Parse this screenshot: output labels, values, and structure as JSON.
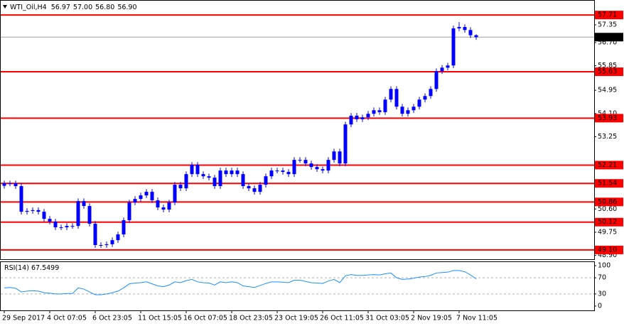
{
  "chart_data": {
    "type": "candlestick",
    "header": {
      "symbol": "WTI_Oil,H4",
      "ohlc": [
        56.97,
        {
          "value": 57,
          "label": "57.00"
        },
        {
          "value": 56.8,
          "label": "56.80"
        },
        {
          "value": 56.9,
          "label": "56.90"
        }
      ]
    },
    "color": "#0000ff",
    "categories": [
      "29 Sep 2017",
      null,
      null,
      null,
      null,
      null,
      null,
      null,
      "4 Oct 07:05",
      null,
      null,
      null,
      null,
      null,
      null,
      null,
      "6 Oct 23:05",
      null,
      null,
      null,
      null,
      null,
      null,
      null,
      "11 Oct 15:05",
      null,
      null,
      null,
      null,
      null,
      null,
      null,
      "16 Oct 07:05",
      null,
      null,
      null,
      null,
      null,
      null,
      null,
      "18 Oct 23:05",
      null,
      null,
      null,
      null,
      null,
      null,
      null,
      "23 Oct 19:05",
      null,
      null,
      null,
      null,
      null,
      null,
      null,
      "26 Oct 11:05",
      null,
      null,
      null,
      null,
      null,
      null,
      null,
      "31 Oct 03:05",
      null,
      null,
      null,
      null,
      null,
      null,
      null,
      "2 Nov 19:05",
      null,
      null,
      null,
      null,
      null,
      null,
      null,
      "7 Nov 11:05",
      null,
      null,
      null
    ],
    "open": [
      51.45,
      51.54,
      51.54,
      51.44,
      50.5,
      50.53,
      50.56,
      50.5,
      50.24,
      50.14,
      49.93,
      49.93,
      49.98,
      49.98,
      50.89,
      50.71,
      50.06,
      49.28,
      49.28,
      49.31,
      49.46,
      49.67,
      50.19,
      50.84,
      50.97,
      51.1,
      51.23,
      50.92,
      50.66,
      50.58,
      50.84,
      51.49,
      51.36,
      51.88,
      52.22,
      51.88,
      51.8,
      51.75,
      51.44,
      52.01,
      51.88,
      52.01,
      51.88,
      51.44,
      51.36,
      51.23,
      51.49,
      51.8,
      52.01,
      52.01,
      51.96,
      51.88,
      52.4,
      52.4,
      52.27,
      52.14,
      52.06,
      52.01,
      52.4,
      52.71,
      52.27,
      53.7,
      54.02,
      53.89,
      53.96,
      54.09,
      54.22,
      54.15,
      54.61,
      55.0,
      54.35,
      54.09,
      54.22,
      54.35,
      54.61,
      54.74,
      55.0,
      55.65,
      55.78,
      55.86,
      57.22,
      57.27,
      57.16,
      56.97
    ],
    "high": [
      51.64,
      51.64,
      51.64,
      51.54,
      50.63,
      50.66,
      50.66,
      50.6,
      50.34,
      50.24,
      50.03,
      50.08,
      50.08,
      50.99,
      50.99,
      50.81,
      50.16,
      49.38,
      49.41,
      49.56,
      49.77,
      50.29,
      50.94,
      51.07,
      51.2,
      51.33,
      51.33,
      51.02,
      50.76,
      50.94,
      51.59,
      51.59,
      51.98,
      52.32,
      52.32,
      51.98,
      51.9,
      51.85,
      52.11,
      52.11,
      52.11,
      52.11,
      51.98,
      51.54,
      51.46,
      51.59,
      51.9,
      52.11,
      52.11,
      52.11,
      52.06,
      52.5,
      52.5,
      52.5,
      52.37,
      52.24,
      52.16,
      52.5,
      52.81,
      52.81,
      53.8,
      54.12,
      54.12,
      54.06,
      54.19,
      54.32,
      54.32,
      54.71,
      55.1,
      55.1,
      54.45,
      54.32,
      54.45,
      54.71,
      54.84,
      55.1,
      55.75,
      55.88,
      55.96,
      57.32,
      57.45,
      57.37,
      57.26,
      57.0
    ],
    "low": [
      51.35,
      51.44,
      51.34,
      50.4,
      50.4,
      50.43,
      50.4,
      50.14,
      50.04,
      49.83,
      49.83,
      49.83,
      49.88,
      49.88,
      50.61,
      49.96,
      49.18,
      49.18,
      49.18,
      49.21,
      49.36,
      49.57,
      50.09,
      50.74,
      50.87,
      51.0,
      50.82,
      50.56,
      50.48,
      50.48,
      50.74,
      51.26,
      51.26,
      51.78,
      51.78,
      51.7,
      51.65,
      51.34,
      51.34,
      51.78,
      51.78,
      51.78,
      51.34,
      51.26,
      51.13,
      51.13,
      51.39,
      51.7,
      51.91,
      51.86,
      51.78,
      51.78,
      52.3,
      52.17,
      52.04,
      51.96,
      51.91,
      51.91,
      52.3,
      52.17,
      52.17,
      53.6,
      53.79,
      53.79,
      53.86,
      53.99,
      54.05,
      54.05,
      54.51,
      54.25,
      53.99,
      53.99,
      54.12,
      54.25,
      54.51,
      54.64,
      54.9,
      55.55,
      55.68,
      55.76,
      57.12,
      57.06,
      56.87,
      56.8
    ],
    "close": [
      51.54,
      51.54,
      51.44,
      50.5,
      50.53,
      50.56,
      50.5,
      50.24,
      50.14,
      49.93,
      49.93,
      49.98,
      49.98,
      50.89,
      50.71,
      50.06,
      49.28,
      49.28,
      49.31,
      49.46,
      49.67,
      50.19,
      50.84,
      50.97,
      51.1,
      51.23,
      50.92,
      50.66,
      50.58,
      50.84,
      51.49,
      51.36,
      51.88,
      52.22,
      51.88,
      51.8,
      51.75,
      51.44,
      52.01,
      51.88,
      52.01,
      51.88,
      51.44,
      51.36,
      51.23,
      51.49,
      51.8,
      52.01,
      52.01,
      51.96,
      51.88,
      52.4,
      52.4,
      52.27,
      52.14,
      52.06,
      52.01,
      52.4,
      52.71,
      52.27,
      53.7,
      54.02,
      53.89,
      53.96,
      54.09,
      54.22,
      54.15,
      54.61,
      55.0,
      54.35,
      54.09,
      54.22,
      54.35,
      54.61,
      54.74,
      55.0,
      55.65,
      55.78,
      55.86,
      57.22,
      57.27,
      57.16,
      56.97,
      56.9
    ],
    "ylim": [
      48.76,
      58.26
    ],
    "yticks": [
      57.35,
      {
        "value": 56.7,
        "label": "56.70"
      },
      55.85,
      54.95,
      {
        "value": 54.1,
        "label": "54.10"
      },
      53.25,
      {
        "value": 50.6,
        "label": "50.60"
      },
      49.75,
      {
        "value": 48.9,
        "label": "48.90"
      }
    ],
    "levels": [
      57.71,
      55.63,
      53.93,
      52.21,
      51.54,
      50.86,
      50.12,
      {
        "value": 49.1,
        "label": "49.10"
      }
    ],
    "level_color": "#ff0000",
    "last_price": {
      "value": 56.9,
      "label": "56.90"
    },
    "rsi": {
      "label": "RSI(14)",
      "color": "#1e90ff",
      "values": [
        45,
        46,
        44,
        35,
        37,
        38,
        37,
        33,
        32,
        30,
        30,
        31,
        31,
        45,
        42,
        35,
        28,
        28,
        30,
        33,
        37,
        45,
        55,
        57,
        58,
        60,
        55,
        50,
        48,
        52,
        60,
        58,
        63,
        66,
        60,
        58,
        57,
        52,
        60,
        58,
        60,
        58,
        50,
        48,
        46,
        51,
        56,
        60,
        60,
        59,
        58,
        64,
        64,
        61,
        58,
        57,
        56,
        62,
        66,
        58,
        75,
        78,
        76,
        76,
        77,
        78,
        77,
        80,
        82,
        70,
        66,
        67,
        69,
        72,
        73,
        76,
        82,
        83,
        84,
        88,
        88,
        85,
        77,
        67.5499
      ],
      "ylim": [
        -10.7,
        110.7
      ],
      "yticks": [
        100,
        70,
        30,
        0
      ],
      "levels": [
        70,
        30
      ]
    }
  }
}
